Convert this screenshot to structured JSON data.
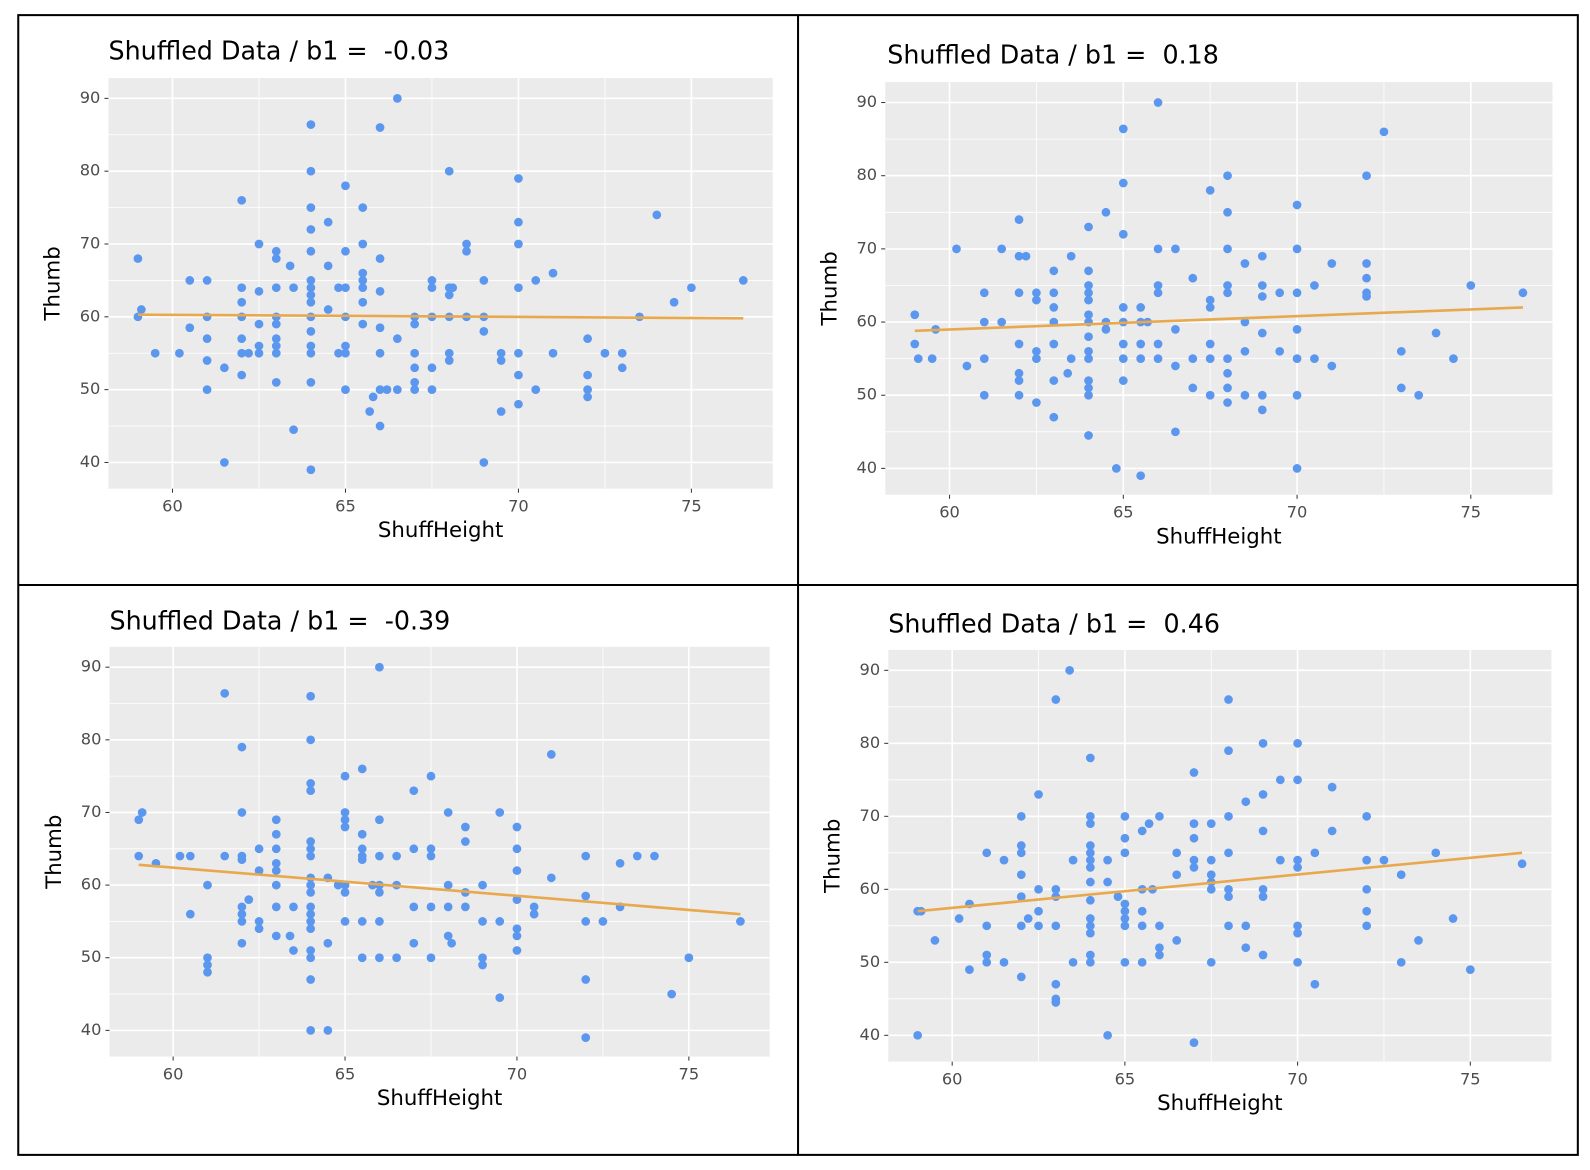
{
  "chart_data": [
    {
      "type": "scatter",
      "title": "Shuffled Data / b1 =  -0.03",
      "xlabel": "ShuffHeight",
      "ylabel": "Thumb",
      "color": "#5b97ee",
      "xlim": [
        58.15,
        77.35
      ],
      "ylim": [
        36.4,
        92.8
      ],
      "xticks": [
        60,
        65,
        70,
        75
      ],
      "yticks": [
        40,
        50,
        60,
        70,
        80,
        90
      ],
      "grid": true,
      "x": [
        59,
        59,
        59.1,
        59.5,
        60.2,
        60.5,
        60.5,
        61,
        61,
        61,
        61,
        61,
        61.5,
        61.5,
        62,
        62,
        62,
        62,
        62,
        62,
        62,
        62.2,
        62.5,
        62.5,
        62.5,
        62.5,
        62.5,
        63,
        63,
        63,
        63,
        63,
        63,
        63,
        63,
        63,
        63.4,
        63.5,
        63.5,
        64,
        64,
        64,
        64,
        64,
        64,
        64,
        64,
        64,
        64,
        64,
        64,
        64,
        64,
        64,
        64.5,
        64.5,
        64.5,
        64.8,
        64.8,
        65,
        65,
        65,
        65,
        65,
        65,
        65,
        65.5,
        65.5,
        65.5,
        65.5,
        65.5,
        65.5,
        65.5,
        65.7,
        65.8,
        66,
        66,
        66,
        66,
        66,
        66,
        66,
        66.2,
        66.5,
        66.5,
        66.5,
        67,
        67,
        67,
        67,
        67,
        67,
        67.5,
        67.5,
        67.5,
        67.5,
        67.5,
        68,
        68,
        68,
        68,
        68,
        68,
        68.1,
        68.5,
        68.5,
        68.5,
        69,
        69,
        69,
        69,
        69.5,
        69.5,
        69.5,
        70,
        70,
        70,
        70,
        70,
        70,
        70,
        70.5,
        70.5,
        71,
        71,
        72,
        72,
        72,
        72,
        72.5,
        73,
        73,
        73.5,
        74,
        74.5,
        75,
        76.5
      ],
      "values": [
        68,
        60,
        61,
        55,
        55,
        58.5,
        65,
        65,
        60,
        57,
        54,
        50,
        40,
        53,
        76,
        64,
        62,
        60,
        57,
        55,
        52,
        55,
        70,
        63.5,
        59,
        56,
        55,
        69,
        68,
        64,
        60,
        59,
        57,
        56,
        55,
        51,
        67,
        44.5,
        64,
        86.4,
        80,
        75,
        72,
        69,
        65,
        64,
        63,
        62,
        60,
        58,
        56,
        55,
        51,
        39,
        73,
        67,
        61,
        64,
        55,
        78,
        69,
        64,
        60,
        56,
        55,
        50,
        75,
        70,
        66,
        65,
        64,
        62,
        59,
        47,
        49,
        86,
        68,
        63.5,
        58.5,
        55,
        50,
        45,
        50,
        90,
        57,
        50,
        60,
        59,
        55,
        53,
        51,
        50,
        65,
        64,
        60,
        53,
        50,
        80,
        64,
        63,
        60,
        55,
        54,
        64,
        70,
        69,
        60,
        65,
        60,
        58,
        40,
        55,
        54,
        47,
        79,
        73,
        70,
        64,
        55,
        52,
        48,
        65,
        50,
        66,
        55,
        57,
        52,
        50,
        49,
        55,
        55,
        53,
        60,
        74,
        62,
        64,
        65
      ],
      "fit": {
        "x": [
          59,
          76.5
        ],
        "values": [
          60.3,
          59.8
        ],
        "color": "#e8a94e"
      }
    },
    {
      "type": "scatter",
      "title": "Shuffled Data / b1 =  0.18",
      "xlabel": "ShuffHeight",
      "ylabel": "Thumb",
      "color": "#5b97ee",
      "xlim": [
        58.15,
        77.35
      ],
      "ylim": [
        36.4,
        92.8
      ],
      "xticks": [
        60,
        65,
        70,
        75
      ],
      "yticks": [
        40,
        50,
        60,
        70,
        80,
        90
      ],
      "grid": true,
      "x": [
        59,
        59,
        59.1,
        59.5,
        59.6,
        60.2,
        60.5,
        61,
        61,
        61,
        61,
        61.5,
        61.5,
        62,
        62,
        62,
        62,
        62,
        62,
        62,
        62.2,
        62.5,
        62.5,
        62.5,
        62.5,
        62.5,
        63,
        63,
        63,
        63,
        63,
        63,
        63,
        63.4,
        63.5,
        63.5,
        64,
        64,
        64,
        64,
        64,
        64,
        64,
        64,
        64,
        64,
        64,
        64,
        64,
        64,
        64.5,
        64.5,
        64.5,
        64.8,
        65,
        65,
        65,
        65,
        65,
        65,
        65,
        65,
        65.5,
        65.5,
        65.5,
        65.5,
        65.5,
        65.7,
        66,
        66,
        66,
        66,
        66,
        66,
        66.5,
        66.5,
        66.5,
        66.5,
        67,
        67,
        67,
        67.5,
        67.5,
        67.5,
        67.5,
        67.5,
        67.5,
        68,
        68,
        68,
        68,
        68,
        68,
        68,
        68,
        68,
        68.5,
        68.5,
        68.5,
        68.5,
        69,
        69,
        69,
        69,
        69,
        69,
        69.5,
        69.5,
        70,
        70,
        70,
        70,
        70,
        70,
        70,
        70.5,
        70.5,
        71,
        71,
        72,
        72,
        72,
        72,
        72,
        72.5,
        73,
        73,
        73.5,
        74,
        74.5,
        75,
        76.5
      ],
      "values": [
        61,
        57,
        55,
        55,
        59,
        70,
        54,
        64,
        60,
        55,
        50,
        60,
        70,
        74,
        69,
        64,
        57,
        53,
        52,
        50,
        69,
        64,
        63,
        56,
        55,
        49,
        67,
        64,
        62,
        60,
        57,
        52,
        47,
        53,
        69,
        55,
        73,
        67,
        65,
        64,
        63,
        61,
        60,
        58,
        56,
        55,
        52,
        51,
        50,
        44.5,
        75,
        60,
        59,
        40,
        60,
        86.4,
        79,
        72,
        62,
        57,
        55,
        52,
        62,
        60,
        57,
        55,
        39,
        60,
        90,
        70,
        65,
        64,
        55,
        57,
        70,
        59,
        54,
        45,
        66,
        55,
        51,
        78,
        63,
        62,
        57,
        55,
        50,
        80,
        75,
        70,
        65,
        64,
        55,
        53,
        51,
        49,
        68,
        60,
        56,
        50,
        69,
        65,
        63.5,
        58.5,
        50,
        48,
        64,
        56,
        76,
        70,
        64,
        59,
        55,
        50,
        40,
        65,
        55,
        68,
        54,
        80,
        68,
        66,
        64,
        63.5,
        86,
        56,
        51,
        50,
        58.5,
        55,
        65,
        64
      ],
      "fit": {
        "x": [
          59,
          76.5
        ],
        "values": [
          58.8,
          62.0
        ],
        "color": "#e8a94e"
      }
    },
    {
      "type": "scatter",
      "title": "Shuffled Data / b1 =  -0.39",
      "xlabel": "ShuffHeight",
      "ylabel": "Thumb",
      "color": "#5b97ee",
      "xlim": [
        58.15,
        77.35
      ],
      "ylim": [
        36.4,
        92.8
      ],
      "xticks": [
        60,
        65,
        70,
        75
      ],
      "yticks": [
        40,
        50,
        60,
        70,
        80,
        90
      ],
      "grid": true,
      "x": [
        59,
        59,
        59.1,
        59.5,
        60.2,
        60.5,
        60.5,
        61,
        61,
        61,
        61,
        61.5,
        61.5,
        62,
        62,
        62,
        62,
        62,
        62,
        62,
        62,
        62.2,
        62.5,
        62.5,
        62.5,
        62.5,
        63,
        63,
        63,
        63,
        63,
        63,
        63,
        63,
        63.4,
        63.5,
        63.5,
        64,
        64,
        64,
        64,
        64,
        64,
        64,
        64,
        64,
        64,
        64,
        64,
        64,
        64,
        64,
        64,
        64,
        64,
        64.5,
        64.5,
        64.5,
        64.8,
        65,
        65,
        65,
        65,
        65,
        65,
        65,
        65.5,
        65.5,
        65.5,
        65.5,
        65.5,
        65.5,
        65.5,
        65.8,
        66,
        66,
        66,
        66,
        66,
        66,
        66,
        66.5,
        66.5,
        66.5,
        67,
        67,
        67,
        67,
        67.5,
        67.5,
        67.5,
        67.5,
        67.5,
        68,
        68,
        68,
        68,
        68.1,
        68.5,
        68.5,
        68.5,
        68.5,
        69,
        69,
        69,
        69,
        69.5,
        69.5,
        69.5,
        70,
        70,
        70,
        70,
        70,
        70,
        70,
        70.5,
        70.5,
        71,
        71,
        72,
        72,
        72,
        72,
        72,
        72.5,
        73,
        73,
        73.5,
        74,
        74.5,
        75,
        76.5
      ],
      "values": [
        69,
        64,
        70,
        63,
        64,
        64,
        56,
        60,
        50,
        49,
        48,
        86.4,
        64,
        79,
        70,
        64,
        63.5,
        57,
        56,
        55,
        52,
        58,
        65,
        62,
        55,
        54,
        69,
        67,
        65,
        63,
        62,
        60,
        57,
        53,
        53,
        51,
        57,
        86,
        80,
        74,
        73,
        66,
        65,
        64,
        61,
        60,
        59,
        57,
        56,
        55,
        54,
        51,
        50,
        47,
        40,
        40,
        61,
        52,
        60,
        75,
        70,
        69,
        68,
        60,
        59,
        55,
        76,
        67,
        65,
        64,
        63.5,
        55,
        50,
        60,
        90,
        69,
        64,
        60,
        59,
        55,
        50,
        64,
        60,
        50,
        73,
        65,
        57,
        52,
        75,
        65,
        64,
        57,
        50,
        70,
        60,
        57,
        53,
        52,
        68,
        66,
        59,
        57,
        60,
        55,
        50,
        49,
        70,
        55,
        44.5,
        68,
        65,
        62,
        58,
        54,
        53,
        51,
        57,
        56,
        78,
        61,
        64,
        58.5,
        55,
        47,
        39,
        55,
        57,
        63,
        64,
        64,
        45,
        50,
        55
      ],
      "fit": {
        "x": [
          59,
          76.5
        ],
        "values": [
          62.8,
          56.0
        ],
        "color": "#e8a94e"
      }
    },
    {
      "type": "scatter",
      "title": "Shuffled Data / b1 =  0.46",
      "xlabel": "ShuffHeight",
      "ylabel": "Thumb",
      "color": "#5b97ee",
      "xlim": [
        58.15,
        77.35
      ],
      "ylim": [
        36.4,
        92.8
      ],
      "xticks": [
        60,
        65,
        70,
        75
      ],
      "yticks": [
        40,
        50,
        60,
        70,
        80,
        90
      ],
      "grid": true,
      "x": [
        59,
        59,
        59.1,
        59.5,
        60.2,
        60.5,
        60.5,
        61,
        61,
        61,
        61,
        61.5,
        61.5,
        62,
        62,
        62,
        62,
        62,
        62,
        62,
        62.2,
        62.5,
        62.5,
        62.5,
        62.5,
        63,
        63,
        63,
        63,
        63,
        63,
        63,
        63.4,
        63.5,
        63.5,
        64,
        64,
        64,
        64,
        64,
        64,
        64,
        64,
        64,
        64,
        64,
        64,
        64,
        64,
        64.5,
        64.5,
        64.5,
        64.8,
        65,
        65,
        65,
        65,
        65,
        65,
        65,
        65,
        65.5,
        65.5,
        65.5,
        65.5,
        65.5,
        65.7,
        65.8,
        66,
        66,
        66,
        66,
        66.5,
        66.5,
        66.5,
        67,
        67,
        67,
        67,
        67,
        67,
        67.5,
        67.5,
        67.5,
        67.5,
        67.5,
        67.5,
        68,
        68,
        68,
        68,
        68,
        68,
        68,
        68.5,
        68.5,
        68.5,
        69,
        69,
        69,
        69,
        69,
        69,
        69.5,
        69.5,
        70,
        70,
        70,
        70,
        70,
        70,
        70,
        70.5,
        70.5,
        71,
        71,
        72,
        72,
        72,
        72,
        72,
        72.5,
        73,
        73,
        73.5,
        74,
        74.5,
        75,
        76.5
      ],
      "values": [
        57,
        40,
        57,
        53,
        56,
        49,
        58,
        65,
        55,
        51,
        50,
        50,
        64,
        70,
        66,
        65,
        62,
        59,
        55,
        48,
        56,
        73,
        60,
        57,
        55,
        86,
        60,
        59,
        55,
        47,
        45,
        44.5,
        90,
        64,
        50,
        78,
        70,
        69,
        66,
        65,
        64,
        63,
        61,
        58.5,
        56,
        55,
        54,
        51,
        50,
        64,
        61,
        40,
        59,
        70,
        67,
        65,
        58,
        57,
        56,
        55,
        50,
        68,
        60,
        57,
        55,
        50,
        69,
        60,
        70,
        55,
        52,
        51,
        65,
        62,
        53,
        76,
        69,
        67,
        64,
        63,
        39,
        69,
        64,
        62,
        61,
        60,
        50,
        86,
        79,
        70,
        65,
        60,
        59,
        55,
        72,
        55,
        52,
        80,
        73,
        68,
        60,
        59,
        51,
        75,
        64,
        80,
        75,
        64,
        63,
        55,
        54,
        50,
        65,
        47,
        74,
        68,
        70,
        64,
        60,
        57,
        55,
        64,
        62,
        50,
        53,
        65,
        56,
        49,
        63.5
      ],
      "fit": {
        "x": [
          59,
          76.5
        ],
        "values": [
          57.0,
          65.0
        ],
        "color": "#e8a94e"
      }
    }
  ]
}
